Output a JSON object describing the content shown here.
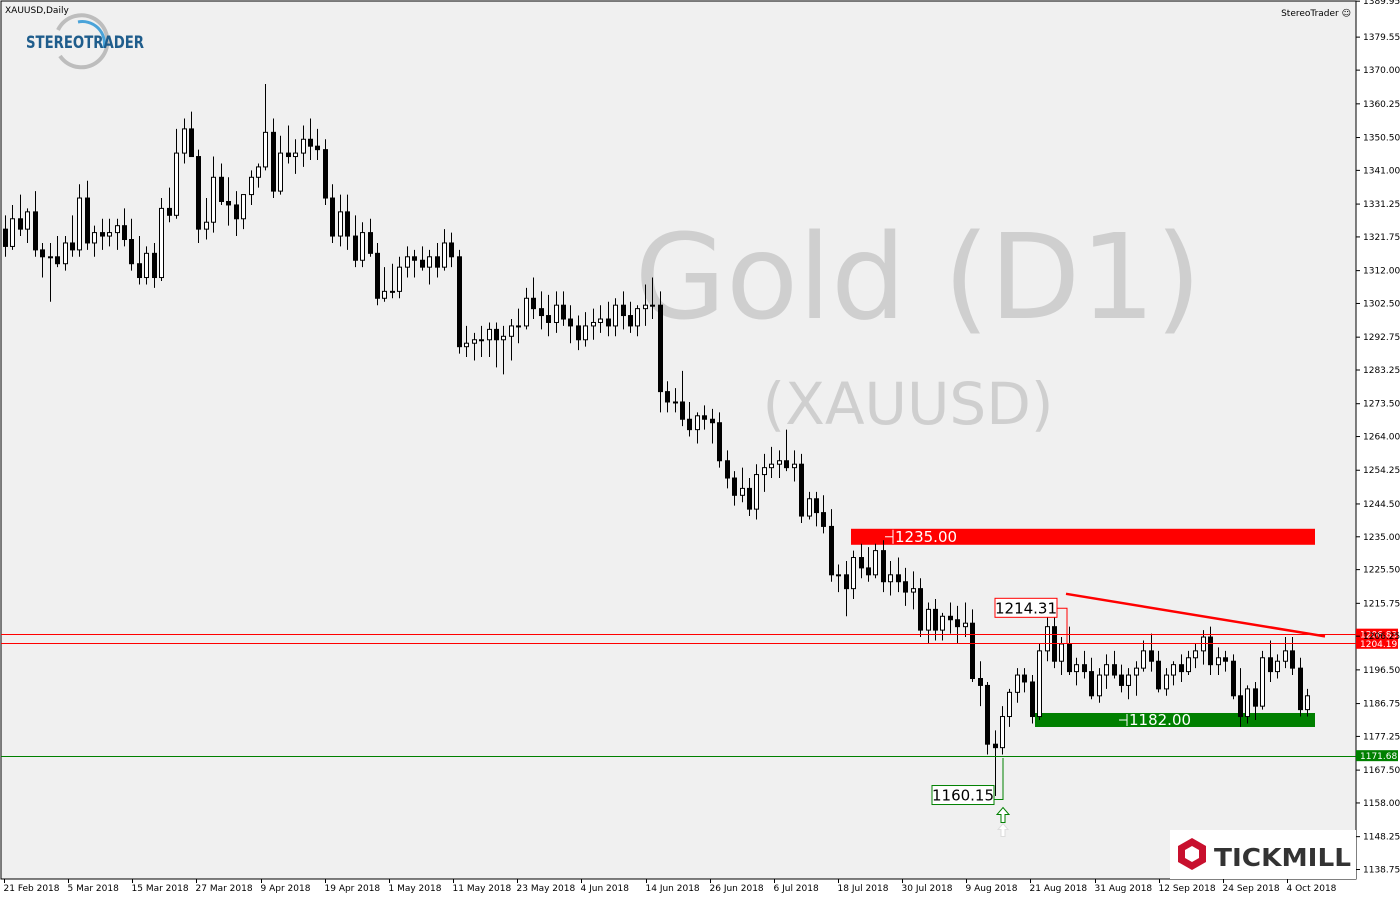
{
  "header": {
    "symbol_label": "XAUUSD,Daily",
    "expert_label": "StereoTrader ☺"
  },
  "logos": {
    "stereotrader": "STEREOTRADER",
    "tickmill": "TICKMILL"
  },
  "watermark": {
    "title": "Gold (D1)",
    "subtitle": "(XAUUSD)"
  },
  "colors": {
    "background": "#ffffff",
    "plot_bg": "#f0f0f0",
    "bull_candle": "#ffffff",
    "bear_candle": "#000000",
    "resistance": "#ff0000",
    "support": "#008000",
    "watermark": "#cfcfcf"
  },
  "chart_data": {
    "type": "candlestick",
    "title": "Gold (D1)",
    "subtitle": "(XAUUSD)",
    "ylim": [
      1136.0,
      1390.0
    ],
    "y_ticks": [
      "1389.95",
      "1379.55",
      "1370.00",
      "1360.25",
      "1350.50",
      "1341.00",
      "1331.25",
      "1321.75",
      "1312.00",
      "1302.50",
      "1292.75",
      "1283.25",
      "1273.50",
      "1264.00",
      "1254.25",
      "1244.50",
      "1235.00",
      "1225.50",
      "1215.75",
      "1206.25",
      "1196.50",
      "1186.75",
      "1177.25",
      "1167.50",
      "1158.00",
      "1148.25",
      "1138.75"
    ],
    "x_ticks": [
      "21 Feb 2018",
      "5 Mar 2018",
      "15 Mar 2018",
      "27 Mar 2018",
      "9 Apr 2018",
      "19 Apr 2018",
      "1 May 2018",
      "11 May 2018",
      "23 May 2018",
      "4 Jun 2018",
      "14 Jun 2018",
      "26 Jun 2018",
      "6 Jul 2018",
      "18 Jul 2018",
      "30 Jul 2018",
      "9 Aug 2018",
      "21 Aug 2018",
      "31 Aug 2018",
      "12 Sep 2018",
      "24 Sep 2018",
      "4 Oct 2018"
    ],
    "price_labels": [
      {
        "text": "1206.83",
        "value": 1206.83,
        "color": "#ff0000"
      },
      {
        "text": "1204.19",
        "value": 1204.19,
        "color": "#ff0000"
      },
      {
        "text": "1171.68",
        "value": 1171.68,
        "color": "#008000"
      }
    ],
    "annotations": [
      {
        "kind": "zone",
        "label": "1235.00",
        "value": 1235.0,
        "color": "#ff0000"
      },
      {
        "kind": "zone",
        "label": "1182.00",
        "value": 1182.0,
        "color": "#008000"
      },
      {
        "kind": "price_box",
        "label": "1214.31",
        "value": 1214.31,
        "color": "#ff0000"
      },
      {
        "kind": "price_box",
        "label": "1160.15",
        "value": 1160.15,
        "color": "#008000"
      },
      {
        "kind": "trendline",
        "from": 1218.5,
        "to": 1206.2,
        "color": "#ff0000"
      }
    ],
    "series": [
      {
        "o": 1324,
        "h": 1328,
        "l": 1316,
        "c": 1319
      },
      {
        "o": 1319,
        "h": 1331,
        "l": 1318,
        "c": 1327
      },
      {
        "o": 1327,
        "h": 1334,
        "l": 1322,
        "c": 1324
      },
      {
        "o": 1324,
        "h": 1330,
        "l": 1320,
        "c": 1329
      },
      {
        "o": 1329,
        "h": 1335,
        "l": 1316,
        "c": 1318
      },
      {
        "o": 1318,
        "h": 1320,
        "l": 1310,
        "c": 1316
      },
      {
        "o": 1316,
        "h": 1320,
        "l": 1303,
        "c": 1316
      },
      {
        "o": 1316,
        "h": 1322,
        "l": 1313,
        "c": 1314
      },
      {
        "o": 1314,
        "h": 1322,
        "l": 1312,
        "c": 1320
      },
      {
        "o": 1320,
        "h": 1328,
        "l": 1316,
        "c": 1318
      },
      {
        "o": 1318,
        "h": 1337,
        "l": 1316,
        "c": 1333
      },
      {
        "o": 1333,
        "h": 1338,
        "l": 1318,
        "c": 1320
      },
      {
        "o": 1320,
        "h": 1325,
        "l": 1316,
        "c": 1323
      },
      {
        "o": 1323,
        "h": 1327,
        "l": 1318,
        "c": 1322
      },
      {
        "o": 1322,
        "h": 1327,
        "l": 1319,
        "c": 1323
      },
      {
        "o": 1323,
        "h": 1327,
        "l": 1318,
        "c": 1325
      },
      {
        "o": 1325,
        "h": 1330,
        "l": 1319,
        "c": 1321
      },
      {
        "o": 1321,
        "h": 1327,
        "l": 1312,
        "c": 1314
      },
      {
        "o": 1314,
        "h": 1322,
        "l": 1308,
        "c": 1310
      },
      {
        "o": 1310,
        "h": 1319,
        "l": 1308,
        "c": 1317
      },
      {
        "o": 1317,
        "h": 1320,
        "l": 1307,
        "c": 1310
      },
      {
        "o": 1310,
        "h": 1333,
        "l": 1309,
        "c": 1330
      },
      {
        "o": 1330,
        "h": 1336,
        "l": 1326,
        "c": 1328
      },
      {
        "o": 1328,
        "h": 1353,
        "l": 1327,
        "c": 1346
      },
      {
        "o": 1346,
        "h": 1356,
        "l": 1343,
        "c": 1353
      },
      {
        "o": 1353,
        "h": 1358,
        "l": 1345,
        "c": 1345
      },
      {
        "o": 1345,
        "h": 1347,
        "l": 1320,
        "c": 1324
      },
      {
        "o": 1324,
        "h": 1333,
        "l": 1321,
        "c": 1326
      },
      {
        "o": 1326,
        "h": 1345,
        "l": 1323,
        "c": 1339
      },
      {
        "o": 1339,
        "h": 1343,
        "l": 1331,
        "c": 1332
      },
      {
        "o": 1332,
        "h": 1339,
        "l": 1325,
        "c": 1331
      },
      {
        "o": 1331,
        "h": 1335,
        "l": 1322,
        "c": 1327
      },
      {
        "o": 1327,
        "h": 1334,
        "l": 1324,
        "c": 1334
      },
      {
        "o": 1334,
        "h": 1341,
        "l": 1331,
        "c": 1339
      },
      {
        "o": 1339,
        "h": 1343,
        "l": 1336,
        "c": 1342
      },
      {
        "o": 1342,
        "h": 1366,
        "l": 1341,
        "c": 1352
      },
      {
        "o": 1352,
        "h": 1356,
        "l": 1333,
        "c": 1335
      },
      {
        "o": 1335,
        "h": 1351,
        "l": 1334,
        "c": 1346
      },
      {
        "o": 1346,
        "h": 1354,
        "l": 1343,
        "c": 1345
      },
      {
        "o": 1345,
        "h": 1350,
        "l": 1340,
        "c": 1346
      },
      {
        "o": 1346,
        "h": 1354,
        "l": 1342,
        "c": 1350
      },
      {
        "o": 1350,
        "h": 1356,
        "l": 1344,
        "c": 1348
      },
      {
        "o": 1348,
        "h": 1353,
        "l": 1344,
        "c": 1347
      },
      {
        "o": 1347,
        "h": 1350,
        "l": 1331,
        "c": 1333
      },
      {
        "o": 1333,
        "h": 1337,
        "l": 1320,
        "c": 1322
      },
      {
        "o": 1322,
        "h": 1334,
        "l": 1319,
        "c": 1329
      },
      {
        "o": 1329,
        "h": 1334,
        "l": 1318,
        "c": 1322
      },
      {
        "o": 1322,
        "h": 1328,
        "l": 1313,
        "c": 1315
      },
      {
        "o": 1315,
        "h": 1326,
        "l": 1313,
        "c": 1323
      },
      {
        "o": 1323,
        "h": 1327,
        "l": 1316,
        "c": 1317
      },
      {
        "o": 1317,
        "h": 1320,
        "l": 1302,
        "c": 1304
      },
      {
        "o": 1304,
        "h": 1313,
        "l": 1303,
        "c": 1306
      },
      {
        "o": 1306,
        "h": 1314,
        "l": 1304,
        "c": 1306
      },
      {
        "o": 1306,
        "h": 1316,
        "l": 1304,
        "c": 1313
      },
      {
        "o": 1313,
        "h": 1319,
        "l": 1310,
        "c": 1316
      },
      {
        "o": 1316,
        "h": 1318,
        "l": 1310,
        "c": 1315
      },
      {
        "o": 1315,
        "h": 1319,
        "l": 1312,
        "c": 1313
      },
      {
        "o": 1313,
        "h": 1318,
        "l": 1308,
        "c": 1316
      },
      {
        "o": 1316,
        "h": 1320,
        "l": 1310,
        "c": 1313
      },
      {
        "o": 1313,
        "h": 1324,
        "l": 1312,
        "c": 1320
      },
      {
        "o": 1320,
        "h": 1323,
        "l": 1313,
        "c": 1316
      },
      {
        "o": 1316,
        "h": 1318,
        "l": 1288,
        "c": 1290
      },
      {
        "o": 1290,
        "h": 1296,
        "l": 1287,
        "c": 1291
      },
      {
        "o": 1291,
        "h": 1294,
        "l": 1286,
        "c": 1292
      },
      {
        "o": 1292,
        "h": 1296,
        "l": 1287,
        "c": 1292
      },
      {
        "o": 1292,
        "h": 1297,
        "l": 1287,
        "c": 1295
      },
      {
        "o": 1295,
        "h": 1297,
        "l": 1284,
        "c": 1292
      },
      {
        "o": 1292,
        "h": 1296,
        "l": 1282,
        "c": 1293
      },
      {
        "o": 1293,
        "h": 1298,
        "l": 1286,
        "c": 1296
      },
      {
        "o": 1296,
        "h": 1301,
        "l": 1291,
        "c": 1296
      },
      {
        "o": 1296,
        "h": 1307,
        "l": 1295,
        "c": 1304
      },
      {
        "o": 1304,
        "h": 1310,
        "l": 1298,
        "c": 1301
      },
      {
        "o": 1301,
        "h": 1306,
        "l": 1295,
        "c": 1299
      },
      {
        "o": 1299,
        "h": 1305,
        "l": 1293,
        "c": 1297
      },
      {
        "o": 1297,
        "h": 1306,
        "l": 1294,
        "c": 1302
      },
      {
        "o": 1302,
        "h": 1306,
        "l": 1296,
        "c": 1298
      },
      {
        "o": 1298,
        "h": 1302,
        "l": 1291,
        "c": 1296
      },
      {
        "o": 1296,
        "h": 1299,
        "l": 1289,
        "c": 1292
      },
      {
        "o": 1292,
        "h": 1300,
        "l": 1290,
        "c": 1296
      },
      {
        "o": 1296,
        "h": 1301,
        "l": 1292,
        "c": 1297
      },
      {
        "o": 1297,
        "h": 1302,
        "l": 1294,
        "c": 1298
      },
      {
        "o": 1298,
        "h": 1303,
        "l": 1293,
        "c": 1296
      },
      {
        "o": 1296,
        "h": 1304,
        "l": 1293,
        "c": 1302
      },
      {
        "o": 1302,
        "h": 1306,
        "l": 1295,
        "c": 1299
      },
      {
        "o": 1299,
        "h": 1303,
        "l": 1294,
        "c": 1296
      },
      {
        "o": 1296,
        "h": 1302,
        "l": 1293,
        "c": 1301
      },
      {
        "o": 1301,
        "h": 1308,
        "l": 1296,
        "c": 1302
      },
      {
        "o": 1302,
        "h": 1310,
        "l": 1298,
        "c": 1302
      },
      {
        "o": 1302,
        "h": 1306,
        "l": 1271,
        "c": 1277
      },
      {
        "o": 1277,
        "h": 1280,
        "l": 1271,
        "c": 1274
      },
      {
        "o": 1274,
        "h": 1278,
        "l": 1271,
        "c": 1274
      },
      {
        "o": 1274,
        "h": 1283,
        "l": 1267,
        "c": 1269
      },
      {
        "o": 1269,
        "h": 1274,
        "l": 1264,
        "c": 1266
      },
      {
        "o": 1266,
        "h": 1271,
        "l": 1262,
        "c": 1270
      },
      {
        "o": 1270,
        "h": 1273,
        "l": 1266,
        "c": 1269
      },
      {
        "o": 1269,
        "h": 1272,
        "l": 1262,
        "c": 1268
      },
      {
        "o": 1268,
        "h": 1271,
        "l": 1255,
        "c": 1257
      },
      {
        "o": 1257,
        "h": 1260,
        "l": 1249,
        "c": 1252
      },
      {
        "o": 1252,
        "h": 1254,
        "l": 1244,
        "c": 1247
      },
      {
        "o": 1247,
        "h": 1255,
        "l": 1245,
        "c": 1249
      },
      {
        "o": 1249,
        "h": 1252,
        "l": 1241,
        "c": 1243
      },
      {
        "o": 1243,
        "h": 1256,
        "l": 1240,
        "c": 1253
      },
      {
        "o": 1253,
        "h": 1259,
        "l": 1248,
        "c": 1255
      },
      {
        "o": 1255,
        "h": 1261,
        "l": 1252,
        "c": 1256
      },
      {
        "o": 1256,
        "h": 1260,
        "l": 1252,
        "c": 1257
      },
      {
        "o": 1257,
        "h": 1266,
        "l": 1254,
        "c": 1255
      },
      {
        "o": 1255,
        "h": 1260,
        "l": 1251,
        "c": 1256
      },
      {
        "o": 1256,
        "h": 1259,
        "l": 1239,
        "c": 1241
      },
      {
        "o": 1241,
        "h": 1248,
        "l": 1240,
        "c": 1246
      },
      {
        "o": 1246,
        "h": 1248,
        "l": 1238,
        "c": 1242
      },
      {
        "o": 1242,
        "h": 1247,
        "l": 1236,
        "c": 1238
      },
      {
        "o": 1238,
        "h": 1243,
        "l": 1222,
        "c": 1224
      },
      {
        "o": 1224,
        "h": 1227,
        "l": 1219,
        "c": 1224
      },
      {
        "o": 1224,
        "h": 1228,
        "l": 1212,
        "c": 1220
      },
      {
        "o": 1220,
        "h": 1231,
        "l": 1217,
        "c": 1229
      },
      {
        "o": 1229,
        "h": 1233,
        "l": 1223,
        "c": 1226
      },
      {
        "o": 1226,
        "h": 1232,
        "l": 1222,
        "c": 1224
      },
      {
        "o": 1224,
        "h": 1233,
        "l": 1223,
        "c": 1231
      },
      {
        "o": 1231,
        "h": 1234,
        "l": 1219,
        "c": 1222
      },
      {
        "o": 1222,
        "h": 1228,
        "l": 1218,
        "c": 1224
      },
      {
        "o": 1224,
        "h": 1229,
        "l": 1219,
        "c": 1222
      },
      {
        "o": 1222,
        "h": 1226,
        "l": 1215,
        "c": 1219
      },
      {
        "o": 1219,
        "h": 1225,
        "l": 1214,
        "c": 1220
      },
      {
        "o": 1220,
        "h": 1223,
        "l": 1206,
        "c": 1208
      },
      {
        "o": 1208,
        "h": 1216,
        "l": 1204,
        "c": 1214
      },
      {
        "o": 1214,
        "h": 1217,
        "l": 1205,
        "c": 1208
      },
      {
        "o": 1208,
        "h": 1213,
        "l": 1205,
        "c": 1212
      },
      {
        "o": 1212,
        "h": 1216,
        "l": 1207,
        "c": 1211
      },
      {
        "o": 1211,
        "h": 1215,
        "l": 1204,
        "c": 1209
      },
      {
        "o": 1209,
        "h": 1216,
        "l": 1206,
        "c": 1210
      },
      {
        "o": 1210,
        "h": 1214,
        "l": 1193,
        "c": 1194
      },
      {
        "o": 1194,
        "h": 1199,
        "l": 1186,
        "c": 1192
      },
      {
        "o": 1192,
        "h": 1193,
        "l": 1172,
        "c": 1175
      },
      {
        "o": 1175,
        "h": 1179,
        "l": 1160,
        "c": 1174
      },
      {
        "o": 1174,
        "h": 1186,
        "l": 1172,
        "c": 1183
      },
      {
        "o": 1183,
        "h": 1191,
        "l": 1180,
        "c": 1190
      },
      {
        "o": 1190,
        "h": 1197,
        "l": 1187,
        "c": 1195
      },
      {
        "o": 1195,
        "h": 1197,
        "l": 1190,
        "c": 1193
      },
      {
        "o": 1193,
        "h": 1195,
        "l": 1181,
        "c": 1183
      },
      {
        "o": 1183,
        "h": 1204,
        "l": 1182,
        "c": 1202
      },
      {
        "o": 1202,
        "h": 1212,
        "l": 1199,
        "c": 1209
      },
      {
        "o": 1209,
        "h": 1214,
        "l": 1197,
        "c": 1199
      },
      {
        "o": 1199,
        "h": 1206,
        "l": 1195,
        "c": 1204
      },
      {
        "o": 1204,
        "h": 1209,
        "l": 1195,
        "c": 1196
      },
      {
        "o": 1196,
        "h": 1200,
        "l": 1192,
        "c": 1198
      },
      {
        "o": 1198,
        "h": 1202,
        "l": 1194,
        "c": 1196
      },
      {
        "o": 1196,
        "h": 1200,
        "l": 1188,
        "c": 1189
      },
      {
        "o": 1189,
        "h": 1197,
        "l": 1187,
        "c": 1195
      },
      {
        "o": 1195,
        "h": 1201,
        "l": 1191,
        "c": 1198
      },
      {
        "o": 1198,
        "h": 1202,
        "l": 1194,
        "c": 1195
      },
      {
        "o": 1195,
        "h": 1198,
        "l": 1190,
        "c": 1192
      },
      {
        "o": 1192,
        "h": 1197,
        "l": 1188,
        "c": 1195
      },
      {
        "o": 1195,
        "h": 1199,
        "l": 1189,
        "c": 1197
      },
      {
        "o": 1197,
        "h": 1205,
        "l": 1196,
        "c": 1202
      },
      {
        "o": 1202,
        "h": 1207,
        "l": 1196,
        "c": 1199
      },
      {
        "o": 1199,
        "h": 1202,
        "l": 1190,
        "c": 1191
      },
      {
        "o": 1191,
        "h": 1197,
        "l": 1189,
        "c": 1195
      },
      {
        "o": 1195,
        "h": 1199,
        "l": 1192,
        "c": 1198
      },
      {
        "o": 1198,
        "h": 1201,
        "l": 1193,
        "c": 1196
      },
      {
        "o": 1196,
        "h": 1202,
        "l": 1195,
        "c": 1200
      },
      {
        "o": 1200,
        "h": 1204,
        "l": 1197,
        "c": 1202
      },
      {
        "o": 1202,
        "h": 1208,
        "l": 1198,
        "c": 1206
      },
      {
        "o": 1206,
        "h": 1209,
        "l": 1195,
        "c": 1198
      },
      {
        "o": 1198,
        "h": 1203,
        "l": 1195,
        "c": 1200
      },
      {
        "o": 1200,
        "h": 1202,
        "l": 1196,
        "c": 1199
      },
      {
        "o": 1199,
        "h": 1201,
        "l": 1188,
        "c": 1189
      },
      {
        "o": 1189,
        "h": 1197,
        "l": 1180,
        "c": 1183
      },
      {
        "o": 1183,
        "h": 1192,
        "l": 1181,
        "c": 1191
      },
      {
        "o": 1191,
        "h": 1193,
        "l": 1182,
        "c": 1186
      },
      {
        "o": 1186,
        "h": 1202,
        "l": 1185,
        "c": 1200
      },
      {
        "o": 1200,
        "h": 1205,
        "l": 1193,
        "c": 1196
      },
      {
        "o": 1196,
        "h": 1201,
        "l": 1194,
        "c": 1199
      },
      {
        "o": 1199,
        "h": 1206,
        "l": 1197,
        "c": 1202
      },
      {
        "o": 1202,
        "h": 1206,
        "l": 1195,
        "c": 1197
      },
      {
        "o": 1197,
        "h": 1200,
        "l": 1183,
        "c": 1185
      },
      {
        "o": 1185,
        "h": 1191,
        "l": 1183,
        "c": 1189
      }
    ]
  }
}
